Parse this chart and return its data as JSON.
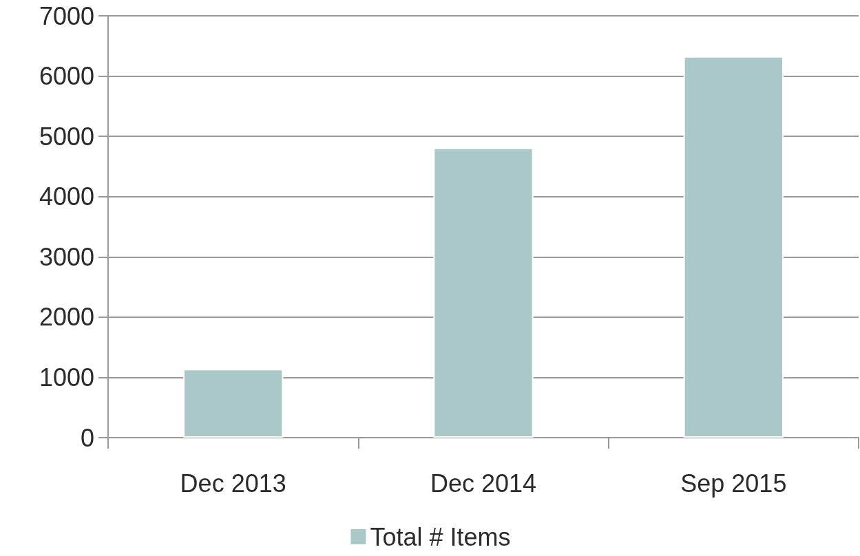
{
  "chart_data": {
    "type": "bar",
    "categories": [
      "Dec 2013",
      "Dec 2014",
      "Sep 2015"
    ],
    "series": [
      {
        "name": "Total # Items",
        "color": "#aac8c8",
        "values": [
          1140,
          4810,
          6330
        ]
      }
    ],
    "ylim": [
      0,
      7000
    ],
    "yticks": [
      0,
      1000,
      2000,
      3000,
      4000,
      5000,
      6000,
      7000
    ],
    "grid": "y",
    "legend": "bottom"
  }
}
